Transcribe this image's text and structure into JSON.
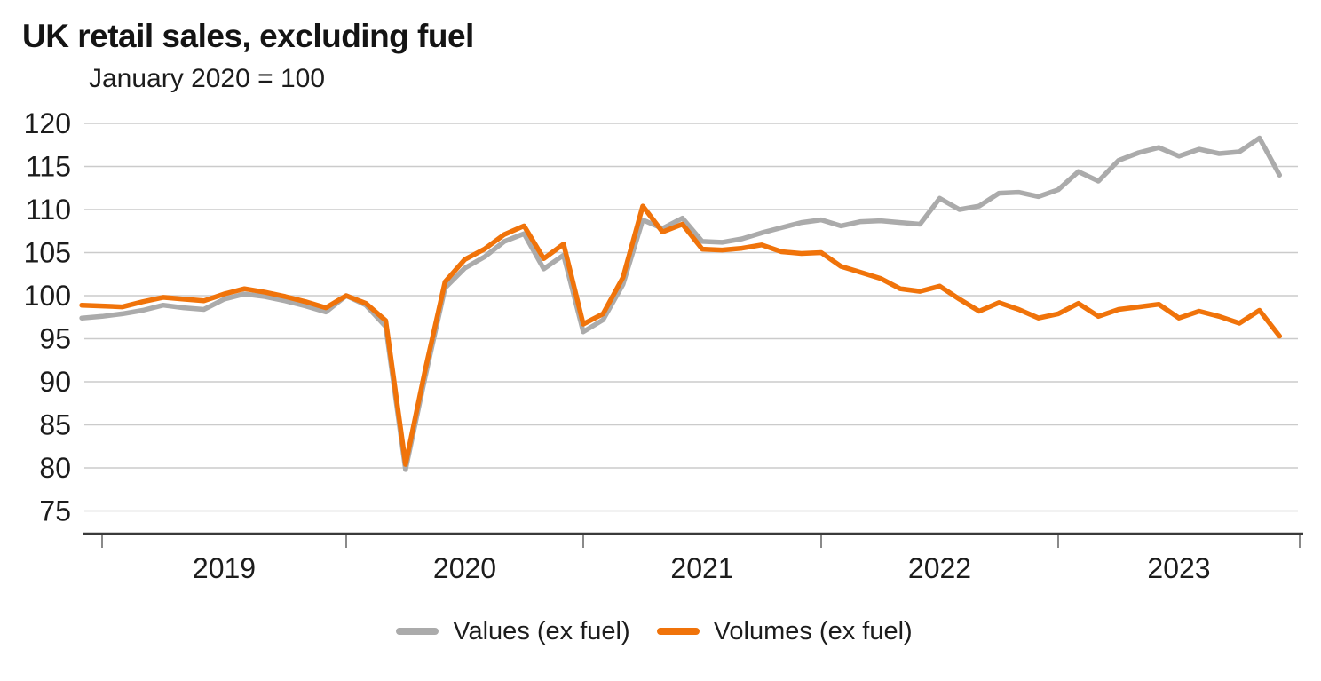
{
  "title": "UK retail sales, excluding fuel",
  "subtitle": "January 2020 = 100",
  "legend": {
    "series1_label": "Values (ex fuel)",
    "series2_label": "Volumes (ex fuel)"
  },
  "colors": {
    "values_line": "#ABABAB",
    "volumes_line": "#F0730A",
    "gridline": "#CBCBCB",
    "axis_line": "#3A3A3A",
    "tick_mark": "#8A8A8A",
    "text": "#1C1C1C"
  },
  "chart_data": {
    "type": "line",
    "title": "UK retail sales, excluding fuel",
    "subtitle": "January 2020 = 100",
    "x_unit": "month",
    "x_start": "2018-12",
    "x_end": "2023-12",
    "x_tick_labels": [
      "2019",
      "2020",
      "2021",
      "2022",
      "2023"
    ],
    "y_ticks": [
      120,
      115,
      110,
      105,
      100,
      95,
      90,
      85,
      80,
      75
    ],
    "ylim": [
      72,
      121
    ],
    "grid": "horizontal",
    "legend_position": "bottom",
    "series": [
      {
        "name": "Values (ex fuel)",
        "color": "#ABABAB",
        "values": [
          97.4,
          97.6,
          97.9,
          98.3,
          98.9,
          98.6,
          98.4,
          99.6,
          100.2,
          99.9,
          99.4,
          98.8,
          98.1,
          100.0,
          98.9,
          96.4,
          79.8,
          90.6,
          100.9,
          103.2,
          104.5,
          106.3,
          107.2,
          103.1,
          104.7,
          95.8,
          97.2,
          101.3,
          108.8,
          107.8,
          109.0,
          106.3,
          106.2,
          106.6,
          107.3,
          107.9,
          108.5,
          108.8,
          108.1,
          108.6,
          108.7,
          108.5,
          108.3,
          111.3,
          110.0,
          110.4,
          111.9,
          112.0,
          111.5,
          112.3,
          114.4,
          113.3,
          115.7,
          116.6,
          117.2,
          116.2,
          117.0,
          116.5,
          116.7,
          118.3,
          114.0
        ]
      },
      {
        "name": "Volumes (ex fuel)",
        "color": "#F0730A",
        "values": [
          98.9,
          98.8,
          98.7,
          99.3,
          99.8,
          99.6,
          99.4,
          100.2,
          100.8,
          100.4,
          99.9,
          99.3,
          98.6,
          100.0,
          99.1,
          97.1,
          80.4,
          91.4,
          101.6,
          104.2,
          105.4,
          107.1,
          108.1,
          104.3,
          106.0,
          96.7,
          97.9,
          102.1,
          110.4,
          107.4,
          108.3,
          105.4,
          105.3,
          105.5,
          105.9,
          105.1,
          104.9,
          105.0,
          103.4,
          102.7,
          102.0,
          100.8,
          100.5,
          101.1,
          99.6,
          98.2,
          99.2,
          98.4,
          97.4,
          97.9,
          99.1,
          97.6,
          98.4,
          98.7,
          99.0,
          97.4,
          98.2,
          97.6,
          96.8,
          98.3,
          95.3
        ]
      }
    ]
  }
}
